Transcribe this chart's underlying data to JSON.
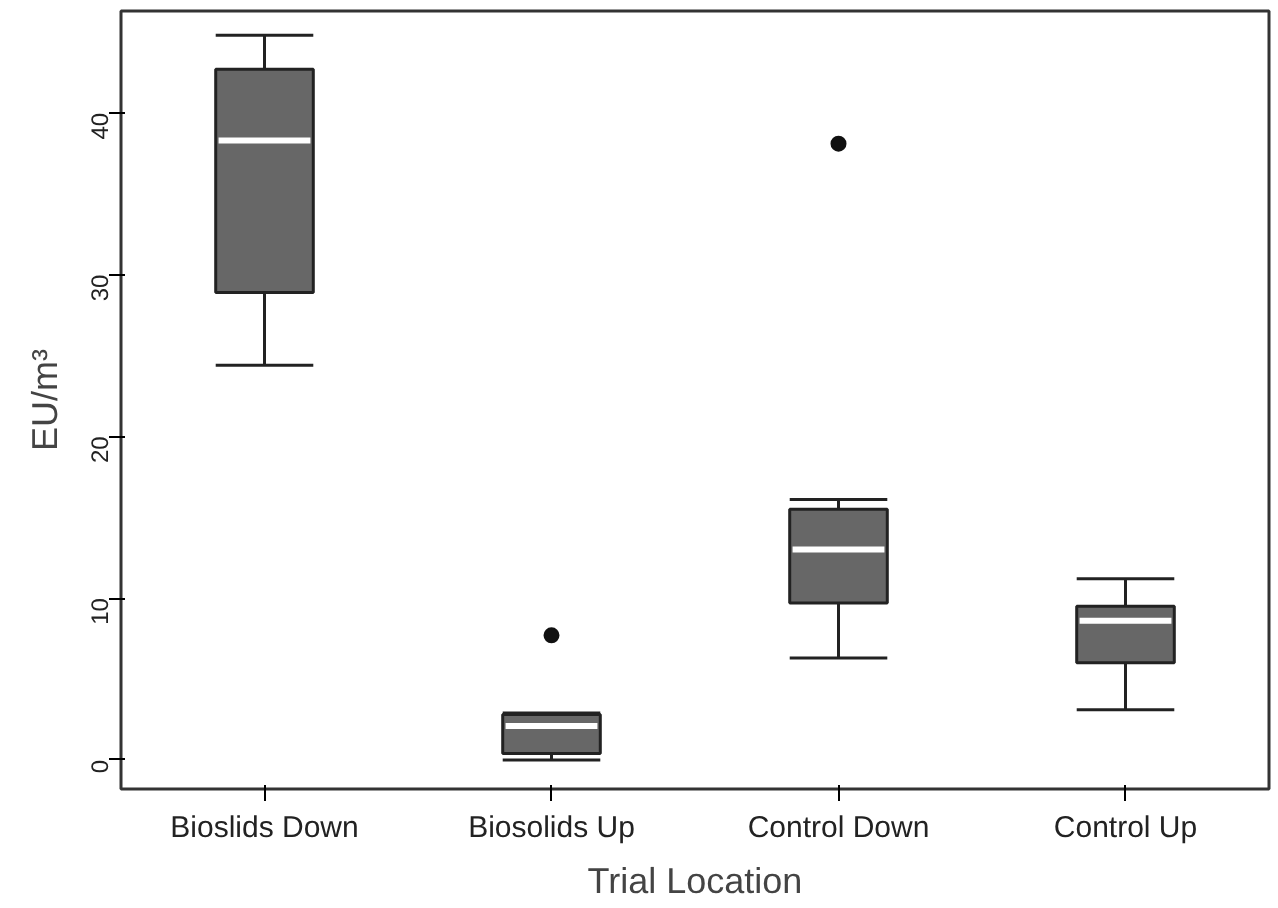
{
  "chart_data": {
    "type": "box",
    "xlabel": "Trial Location",
    "ylabel": "EU/m³",
    "categories": [
      "Bioslids Down",
      "Biosolids Up",
      "Control Down",
      "Control Up"
    ],
    "color": "#676767",
    "boxes": [
      {
        "low": 24.4,
        "q1": 28.9,
        "median": 38.3,
        "q3": 42.7,
        "high": 44.8
      },
      {
        "low": 0,
        "q1": 0.4,
        "median": 2.1,
        "q3": 2.8,
        "high": 2.9,
        "outliers": [
          7.7
        ]
      },
      {
        "low": 6.3,
        "q1": 9.7,
        "median": 13.0,
        "q3": 15.5,
        "high": 16.1,
        "outliers": [
          38.1
        ]
      },
      {
        "low": 3.1,
        "q1": 6.0,
        "median": 8.6,
        "q3": 9.5,
        "high": 11.2
      }
    ],
    "ylim": [
      -1.8,
      46.3
    ],
    "yticks": [
      0,
      10,
      20,
      30,
      40
    ],
    "grid": false
  }
}
